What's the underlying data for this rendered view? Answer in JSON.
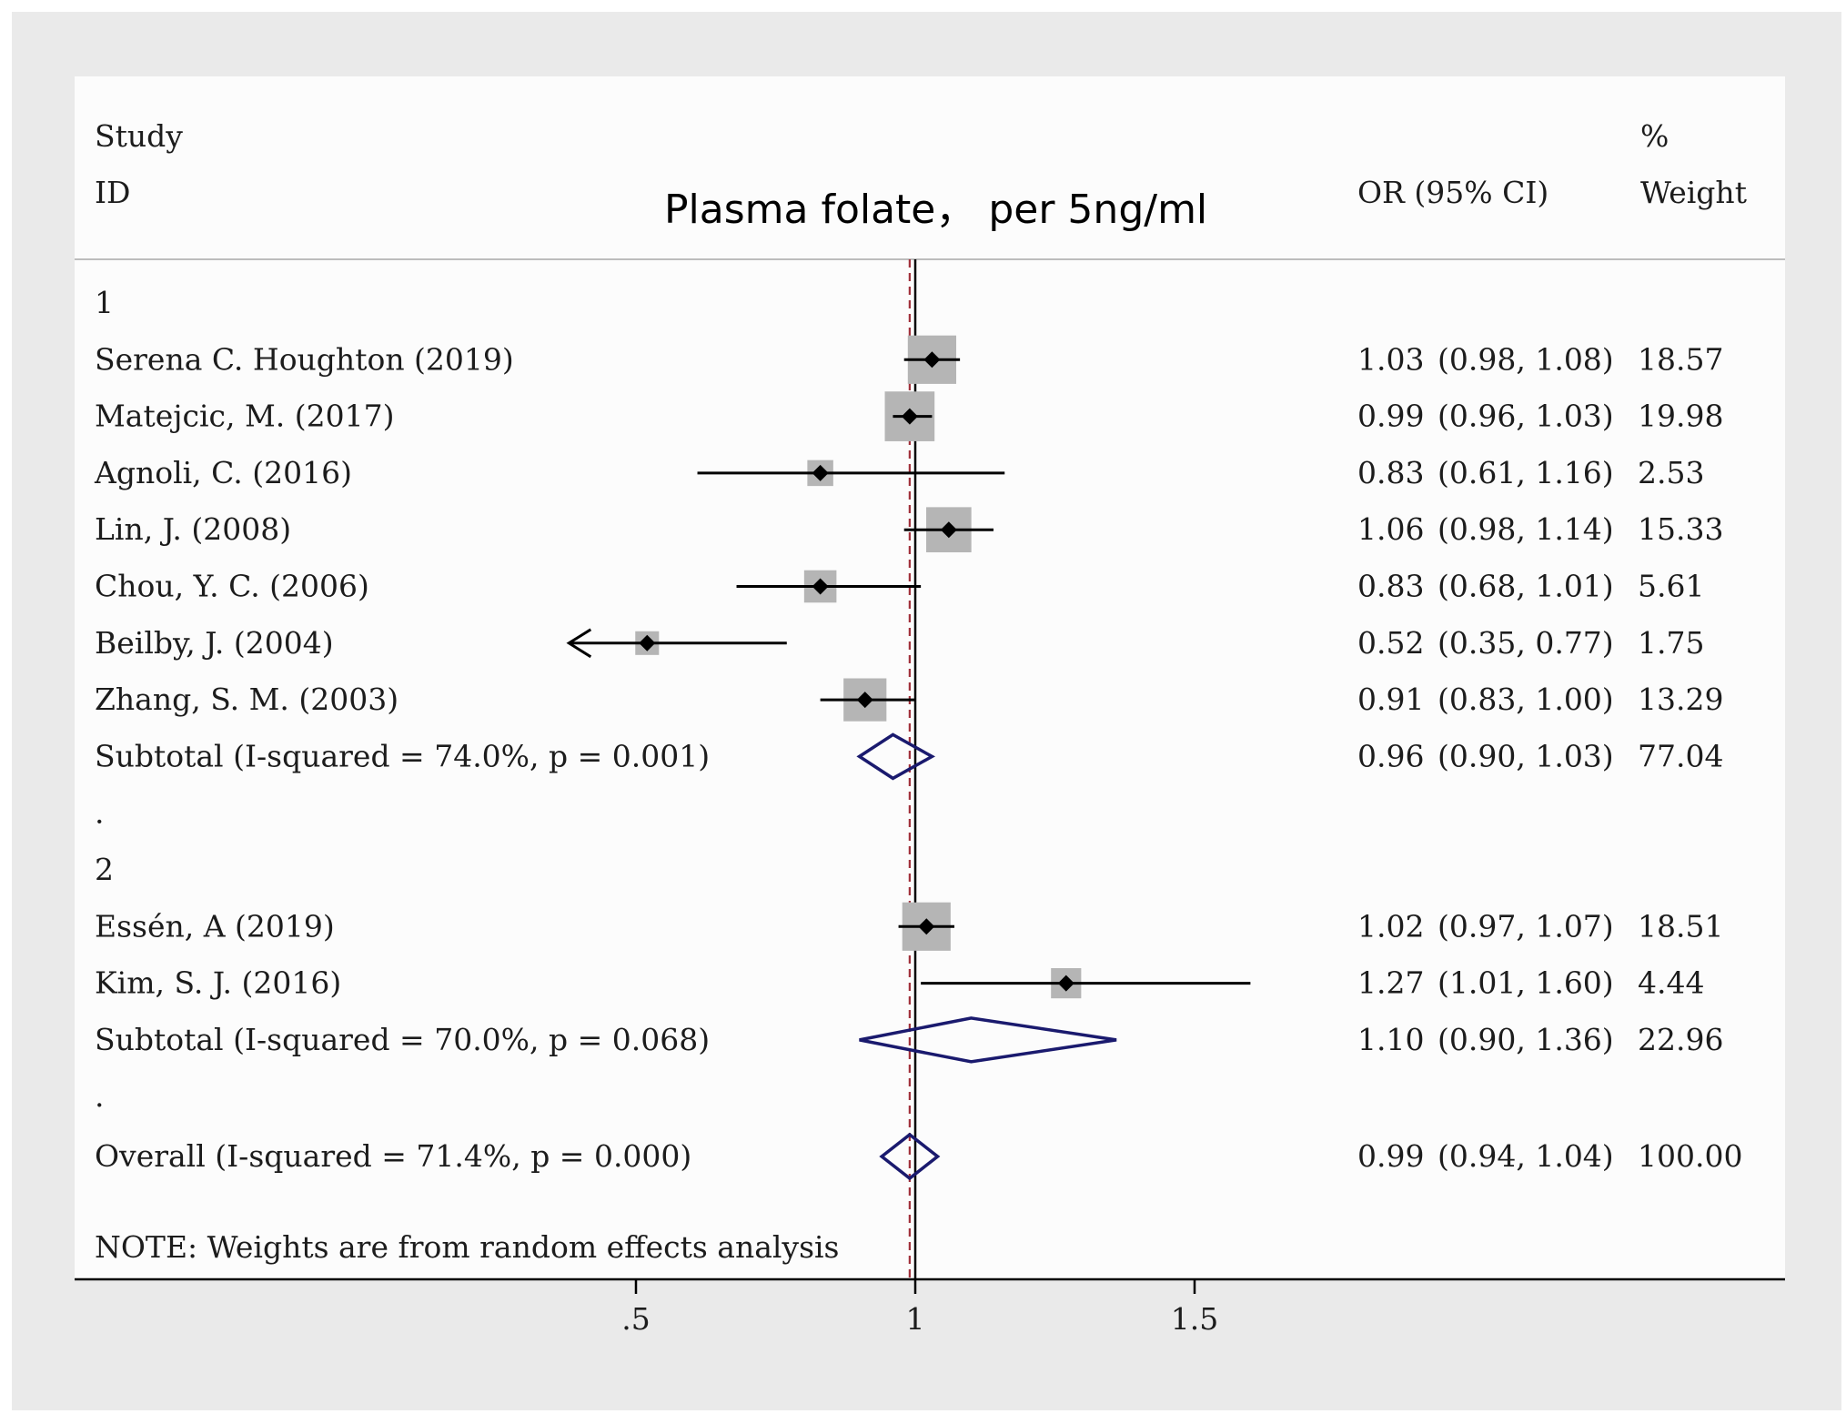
{
  "chart_data": {
    "type": "forest",
    "title": "Plasma folate， per 5ng/ml",
    "headers": {
      "study_line1": "Study",
      "study_line2": "ID",
      "or_label": "OR (95% CI)",
      "weight_line1": "%",
      "weight_line2": "Weight"
    },
    "xticks": [
      {
        "value": 0.5,
        "label": ".5"
      },
      {
        "value": 1,
        "label": "1"
      },
      {
        "value": 1.5,
        "label": "1.5"
      }
    ],
    "null_line": 1,
    "overall_effect": 0.99,
    "x_axis_range": [
      0,
      2.5
    ],
    "rows": [
      {
        "kind": "group",
        "label": "1"
      },
      {
        "kind": "study",
        "label": "Serena C. Houghton (2019)",
        "or": 1.03,
        "lo": 0.98,
        "hi": 1.08,
        "weight": 18.57,
        "est": "1.03",
        "ci": "(0.98, 1.08)",
        "wt": "18.57"
      },
      {
        "kind": "study",
        "label": "Matejcic, M. (2017)",
        "or": 0.99,
        "lo": 0.96,
        "hi": 1.03,
        "weight": 19.98,
        "est": "0.99",
        "ci": "(0.96, 1.03)",
        "wt": "19.98"
      },
      {
        "kind": "study",
        "label": "Agnoli, C. (2016)",
        "or": 0.83,
        "lo": 0.61,
        "hi": 1.16,
        "weight": 2.53,
        "est": "0.83",
        "ci": "(0.61, 1.16)",
        "wt": "2.53"
      },
      {
        "kind": "study",
        "label": "Lin, J. (2008)",
        "or": 1.06,
        "lo": 0.98,
        "hi": 1.14,
        "weight": 15.33,
        "est": "1.06",
        "ci": "(0.98, 1.14)",
        "wt": "15.33"
      },
      {
        "kind": "study",
        "label": "Chou, Y. C. (2006)",
        "or": 0.83,
        "lo": 0.68,
        "hi": 1.01,
        "weight": 5.61,
        "est": "0.83",
        "ci": "(0.68, 1.01)",
        "wt": "5.61"
      },
      {
        "kind": "study",
        "label": "Beilby, J. (2004)",
        "or": 0.52,
        "lo": 0.35,
        "hi": 0.77,
        "weight": 1.75,
        "est": "0.52",
        "ci": "(0.35, 0.77)",
        "wt": "1.75"
      },
      {
        "kind": "study",
        "label": "Zhang, S. M. (2003)",
        "or": 0.91,
        "lo": 0.83,
        "hi": 1.0,
        "weight": 13.29,
        "est": "0.91",
        "ci": "(0.83, 1.00)",
        "wt": "13.29"
      },
      {
        "kind": "subtotal",
        "label": "Subtotal  (I-squared = 74.0%, p = 0.001)",
        "or": 0.96,
        "lo": 0.9,
        "hi": 1.03,
        "weight": 77.04,
        "est": "0.96",
        "ci": "(0.90, 1.03)",
        "wt": "77.04"
      },
      {
        "kind": "spacer",
        "label": "."
      },
      {
        "kind": "group",
        "label": "2"
      },
      {
        "kind": "study",
        "label": "Essén, A (2019)",
        "or": 1.02,
        "lo": 0.97,
        "hi": 1.07,
        "weight": 18.51,
        "est": "1.02",
        "ci": "(0.97, 1.07)",
        "wt": "18.51"
      },
      {
        "kind": "study",
        "label": "Kim, S. J. (2016)",
        "or": 1.27,
        "lo": 1.01,
        "hi": 1.6,
        "weight": 4.44,
        "est": "1.27",
        "ci": "(1.01, 1.60)",
        "wt": "4.44"
      },
      {
        "kind": "subtotal",
        "label": "Subtotal  (I-squared = 70.0%, p = 0.068)",
        "or": 1.1,
        "lo": 0.9,
        "hi": 1.36,
        "weight": 22.96,
        "est": "1.10",
        "ci": "(0.90, 1.36)",
        "wt": "22.96"
      },
      {
        "kind": "spacer",
        "label": "."
      },
      {
        "kind": "overall",
        "label": "Overall  (I-squared = 71.4%, p = 0.000)",
        "or": 0.99,
        "lo": 0.94,
        "hi": 1.04,
        "weight": 100.0,
        "est": "0.99",
        "ci": "(0.94, 1.04)",
        "wt": "100.00"
      }
    ],
    "note": "NOTE: Weights are from random effects analysis",
    "colors": {
      "box": "#b5b5b5",
      "diamond": "#1a1a6e",
      "null_line": "#000000",
      "overall_line": "#a0303a",
      "text": "#1c1c1c",
      "plot_bg": "#fcfcfc",
      "outer_bg": "#eaeaea"
    }
  }
}
